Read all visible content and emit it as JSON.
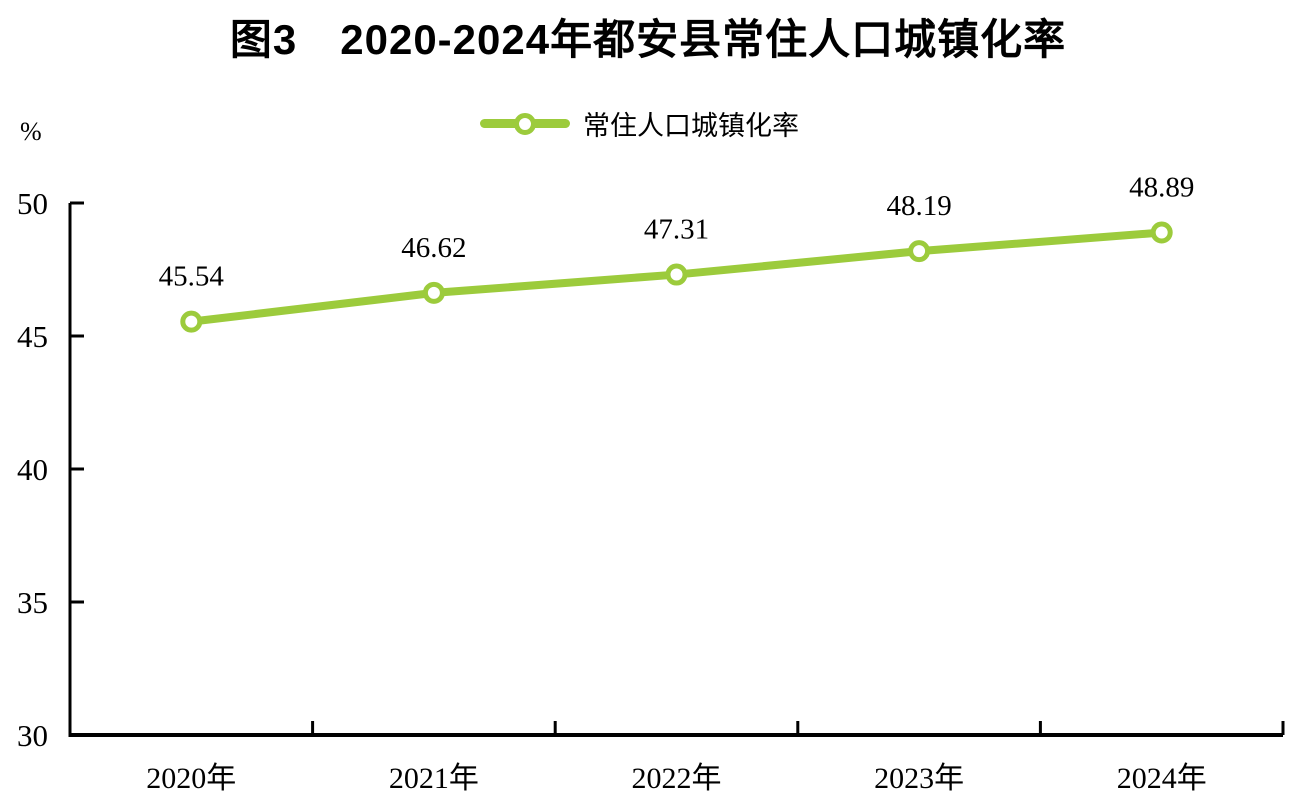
{
  "figure": {
    "title": "图3　2020-2024年都安县常住人口城镇化率",
    "legend_label": "常住人口城镇化率",
    "y_unit": "%"
  },
  "chart_data": {
    "type": "line",
    "title": "图3　2020-2024年都安县常住人口城镇化率",
    "categories": [
      "2020年",
      "2021年",
      "2022年",
      "2023年",
      "2024年"
    ],
    "series": [
      {
        "name": "常住人口城镇化率",
        "values": [
          45.54,
          46.62,
          47.31,
          48.19,
          48.89
        ],
        "labels": [
          "45.54",
          "46.62",
          "47.31",
          "48.19",
          "48.89"
        ],
        "color": "#9CCB3C",
        "marker": "open-circle-white-fill"
      }
    ],
    "xlabel": "",
    "ylabel": "%",
    "ylim": [
      30,
      50
    ],
    "y_ticks": [
      30,
      35,
      40,
      45,
      50
    ],
    "grid": false,
    "legend_position": "top",
    "axis_color": "#000000"
  }
}
